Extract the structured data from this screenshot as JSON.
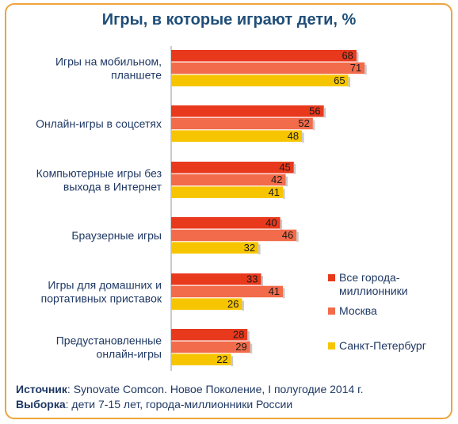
{
  "chart_data": {
    "type": "bar",
    "orientation": "horizontal",
    "title": "Игры, в которые играют дети, %",
    "categories": [
      [
        "Игры на мобильном,",
        "планшете"
      ],
      [
        "Онлайн-игры в соцсетях"
      ],
      [
        "Компьютерные игры без",
        "выхода в Интернет"
      ],
      [
        "Браузерные игры"
      ],
      [
        "Игры для домашних и",
        "портативных приставок"
      ],
      [
        "Предустановленные",
        "онлайн-игры"
      ]
    ],
    "series": [
      {
        "name": "Все города-миллионники",
        "color": "#e8391d",
        "values": [
          68,
          56,
          45,
          40,
          33,
          28
        ]
      },
      {
        "name": "Москва",
        "color": "#f26b4a",
        "values": [
          71,
          52,
          42,
          46,
          41,
          29
        ]
      },
      {
        "name": "Санкт-Петербург",
        "color": "#f7c500",
        "values": [
          65,
          48,
          41,
          32,
          26,
          22
        ]
      }
    ],
    "xlim": [
      0,
      71
    ],
    "grid": false,
    "legend_position": "right"
  },
  "legend": {
    "items": [
      [
        "Все города-",
        "миллионники"
      ],
      [
        "Москва"
      ],
      [
        "Санкт-Петербург"
      ]
    ]
  },
  "source": {
    "source_label": "Источник",
    "source_text": ": Synovate Comcon. Новое Поколение, I полугодие 2014 г.",
    "sample_label": "Выборка",
    "sample_text": ": дети 7-15 лет, города-миллионники России"
  }
}
